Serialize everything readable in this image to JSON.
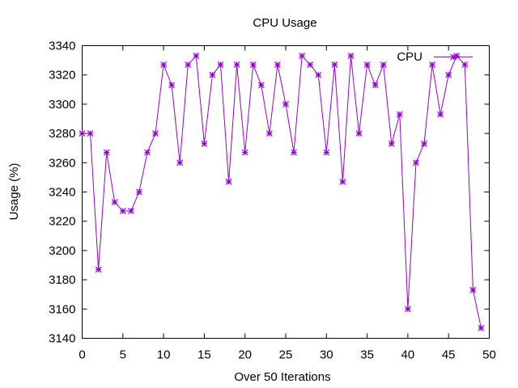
{
  "chart_data": {
    "type": "line",
    "title": "CPU Usage",
    "xlabel": "Over 50 Iterations",
    "ylabel": "Usage (%)",
    "xlim": [
      0,
      50
    ],
    "ylim": [
      3140,
      3340
    ],
    "xticks": [
      0,
      5,
      10,
      15,
      20,
      25,
      30,
      35,
      40,
      45,
      50
    ],
    "yticks": [
      3140,
      3160,
      3180,
      3200,
      3220,
      3240,
      3260,
      3280,
      3300,
      3320,
      3340
    ],
    "grid": false,
    "legend_position": "top-right",
    "series": [
      {
        "name": "CPU",
        "color": "#9400D3",
        "marker": "star",
        "x": [
          0,
          1,
          2,
          3,
          4,
          5,
          6,
          7,
          8,
          9,
          10,
          11,
          12,
          13,
          14,
          15,
          16,
          17,
          18,
          19,
          20,
          21,
          22,
          23,
          24,
          25,
          26,
          27,
          28,
          29,
          30,
          31,
          32,
          33,
          34,
          35,
          36,
          37,
          38,
          39,
          40,
          41,
          42,
          43,
          44,
          45,
          46,
          47,
          48,
          49
        ],
        "y": [
          3280,
          3280,
          3187,
          3267,
          3233,
          3227,
          3227,
          3240,
          3267,
          3280,
          3327,
          3313,
          3260,
          3327,
          3333,
          3273,
          3320,
          3327,
          3247,
          3327,
          3267,
          3327,
          3313,
          3280,
          3327,
          3300,
          3267,
          3333,
          3327,
          3320,
          3267,
          3327,
          3247,
          3333,
          3280,
          3327,
          3313,
          3327,
          3273,
          3293,
          3160,
          3260,
          3273,
          3327,
          3293,
          3320,
          3333,
          3327,
          3173,
          3147
        ]
      }
    ]
  }
}
